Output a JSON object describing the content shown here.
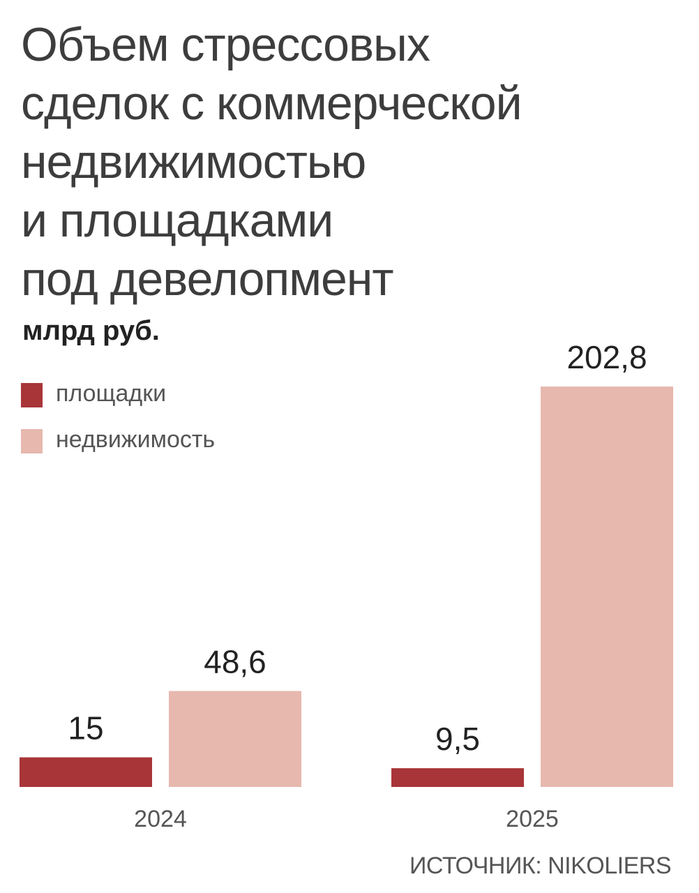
{
  "title_lines": [
    "Объем стрессовых",
    "сделок с коммерческой",
    "недвижимостью",
    "и площадками",
    "под девелопмент"
  ],
  "unit": "млрд руб.",
  "source": "ИСТОЧНИК: NIKOLIERS",
  "colors": {
    "sites": "#a83538",
    "real_estate": "#e7b8ae"
  },
  "chart_data": {
    "type": "bar",
    "title": "Объем стрессовых сделок с коммерческой недвижимостью и площадками под девелопмент",
    "ylabel": "млрд руб.",
    "xlabel": "",
    "categories": [
      "2024",
      "2025"
    ],
    "series": [
      {
        "name": "площадки",
        "values": [
          15,
          9.5
        ],
        "labels": [
          "15",
          "9,5"
        ]
      },
      {
        "name": "недвижимость",
        "values": [
          48.6,
          202.8
        ],
        "labels": [
          "48,6",
          "202,8"
        ]
      }
    ],
    "ylim": [
      0,
      210
    ],
    "grid": false,
    "legend_position": "top-left",
    "source": "ИСТОЧНИК: NIKOLIERS"
  }
}
